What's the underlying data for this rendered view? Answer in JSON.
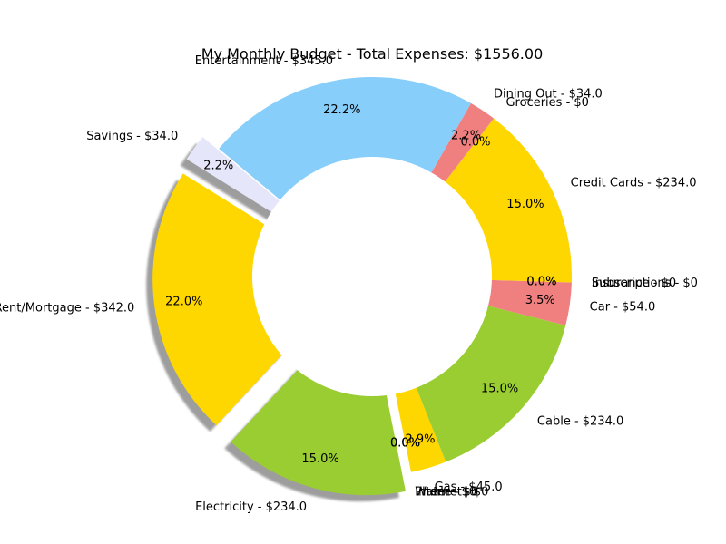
{
  "chart_data": {
    "type": "pie",
    "style": "donut",
    "title": "My Monthly Budget - Total Expenses: $1556.00",
    "start_angle_deg": 148,
    "direction": "counterclockwise",
    "shadow": true,
    "slices": [
      {
        "label": "Rent/Mortgage - $342.0",
        "value": 342,
        "pct": "22.0%",
        "color": "#FFD700",
        "explode": true
      },
      {
        "label": "Electricity - $234.0",
        "value": 234,
        "pct": "15.0%",
        "color": "#9ACD32",
        "explode": true
      },
      {
        "label": "Water - $0",
        "value": 0,
        "pct": "0.0%",
        "color": "#9ACD32"
      },
      {
        "label": "Internet - $0",
        "value": 0,
        "pct": "0.0%",
        "color": "#FFD700"
      },
      {
        "label": "Phone - $0",
        "value": 0,
        "pct": "0.0%",
        "color": "#FFD700"
      },
      {
        "label": "Gas - $45.0",
        "value": 45,
        "pct": "2.9%",
        "color": "#FFD700"
      },
      {
        "label": "Cable - $234.0",
        "value": 234,
        "pct": "15.0%",
        "color": "#9ACD32"
      },
      {
        "label": "Car - $54.0",
        "value": 54,
        "pct": "3.5%",
        "color": "#F08080"
      },
      {
        "label": "Insurance - $0",
        "value": 0,
        "pct": "0.0%",
        "color": "#F08080"
      },
      {
        "label": "Subscriptions - $0",
        "value": 0,
        "pct": "0.0%",
        "color": "#FFD700"
      },
      {
        "label": "Credit Cards - $234.0",
        "value": 234,
        "pct": "15.0%",
        "color": "#FFD700"
      },
      {
        "label": "Groceries - $0",
        "value": 0,
        "pct": "0.0%",
        "color": "#FFD700"
      },
      {
        "label": "Dining Out - $34.0",
        "value": 34,
        "pct": "2.2%",
        "color": "#F08080"
      },
      {
        "label": "Entertainment - $345.0",
        "value": 345,
        "pct": "22.2%",
        "color": "#87CEFA"
      },
      {
        "label": "Savings - $34.0",
        "value": 34,
        "pct": "2.2%",
        "color": "#E6E6FA",
        "explode": true
      }
    ]
  }
}
